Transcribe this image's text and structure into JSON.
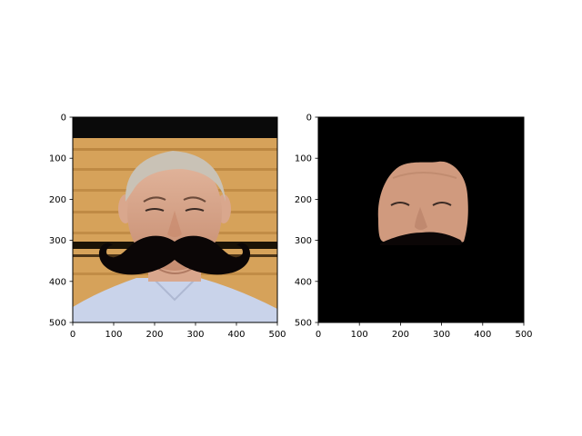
{
  "chart_data": [
    {
      "type": "image",
      "panel": "left",
      "content": "photo of a smiling older man against a wooden background with a large black mustache overlay",
      "xlim": [
        0,
        500
      ],
      "ylim": [
        500,
        0
      ],
      "x_ticks": [
        "0",
        "100",
        "200",
        "300",
        "400",
        "500"
      ],
      "y_ticks": [
        "0",
        "100",
        "200",
        "300",
        "400",
        "500"
      ],
      "colors": {
        "top_band": "#0a0a0a",
        "wood": "#d6a25a",
        "wood_dark": "#a8712e",
        "skin": "#d9a78d",
        "hair": "#c9c2b6",
        "shirt": "#c9d3ea",
        "mustache": "#0b0606"
      }
    },
    {
      "type": "image",
      "panel": "right",
      "content": "masked face region on black background with mustache overlay",
      "xlim": [
        0,
        500
      ],
      "ylim": [
        500,
        0
      ],
      "x_ticks": [
        "0",
        "100",
        "200",
        "300",
        "400",
        "500"
      ],
      "y_ticks": [
        "0",
        "100",
        "200",
        "300",
        "400",
        "500"
      ],
      "colors": {
        "background": "#000000",
        "skin": "#d09a7e",
        "mustache": "#0b0606"
      }
    }
  ]
}
